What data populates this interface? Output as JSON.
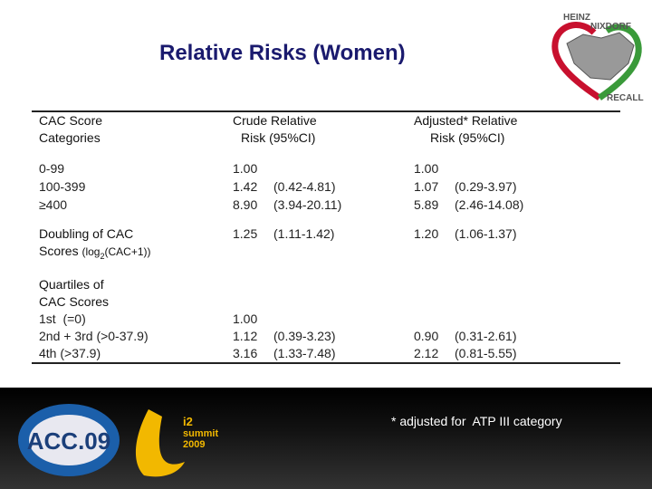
{
  "header": {
    "title": "Relative Risks (Women)",
    "logo": [
      "HEINZ",
      "NIXDORF",
      "RECALL"
    ]
  },
  "table": {
    "columns": [
      [
        "CAC Score",
        "Categories"
      ],
      [
        "Crude Relative",
        "Risk (95%CI)"
      ],
      [
        "Adjusted* Relative",
        "Risk (95%CI)"
      ]
    ],
    "rows": [
      {
        "label": "0-99",
        "crude": "1.00",
        "adjusted": "1.00"
      },
      {
        "label": "100-399",
        "crude": "1.42",
        "crude_ci": "(0.42-4.81)",
        "adjusted": "1.07",
        "adjusted_ci": "(0.29-3.97)"
      },
      {
        "label": "≥400",
        "crude": "8.90",
        "crude_ci": "(3.94-20.11)",
        "adjusted": "5.89",
        "adjusted_ci": "(2.46-14.08)"
      },
      {
        "label": "Doubling of CAC",
        "crude": "1.25",
        "crude_ci": "(1.11-1.42)",
        "adjusted": "1.20",
        "adjusted_ci": "(1.06-1.37)"
      },
      {
        "label": "Quartiles of"
      },
      {
        "label": "CAC Scores"
      },
      {
        "label": "1st  (=0)",
        "crude": "1.00"
      },
      {
        "label": "2nd + 3rd (>0-37.9)",
        "crude": "1.12",
        "crude_ci": "(0.39-3.23)",
        "adjusted": "0.90",
        "adjusted_ci": "(0.31-2.61)"
      },
      {
        "label": "4th (>37.9)",
        "crude": "3.16",
        "crude_ci": "(1.33-7.48)",
        "adjusted": "2.12",
        "adjusted_ci": "(0.81-5.55)"
      }
    ],
    "doubling_sublabel": {
      "text": "Scores",
      "log_prefix": "(log",
      "log_sub": "2",
      "log_rest": "(CAC+1))"
    }
  },
  "footer": {
    "note": "* adjusted for  ATP III category",
    "logo_left": "ACC.09",
    "logo_right": [
      "i2",
      "summit",
      "2009"
    ]
  }
}
